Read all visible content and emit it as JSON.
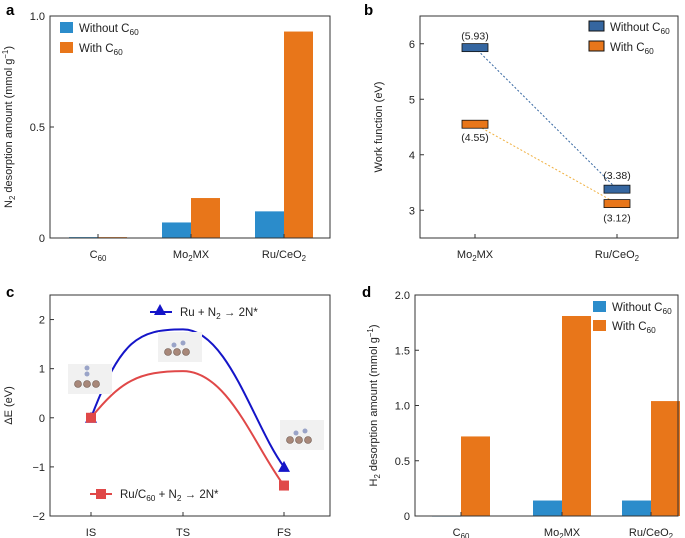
{
  "colors": {
    "blue_a": "#2b8ccb",
    "orange": "#e8761a",
    "blue_b": "#3566a0",
    "line_blue": "#1515c8",
    "line_red": "#e04848",
    "axis": "#333333"
  },
  "chart_data": [
    {
      "panel": "a",
      "type": "bar",
      "categories": [
        "C60",
        "Mo2MX",
        "Ru/CeO2"
      ],
      "series": [
        {
          "name": "Without C60",
          "values": [
            0.004,
            0.07,
            0.12
          ]
        },
        {
          "name": "With C60",
          "values": [
            0.004,
            0.18,
            0.93
          ]
        }
      ],
      "ylabel": "N2 desorption amount (mmol g−1)",
      "ylim": [
        0,
        1.0
      ],
      "yticks": [
        "0",
        "0.5",
        "1.0"
      ],
      "ytick_values": [
        0,
        0.5,
        1.0
      ],
      "legend": "top-left"
    },
    {
      "panel": "b",
      "type": "scatter",
      "categories": [
        "Mo2MX",
        "Ru/CeO2"
      ],
      "series": [
        {
          "name": "Without C60",
          "values": [
            5.93,
            3.38
          ],
          "labels": [
            "(5.93)",
            "(3.38)"
          ]
        },
        {
          "name": "With C60",
          "values": [
            4.55,
            3.12
          ],
          "labels": [
            "(4.55)",
            "(3.12)"
          ]
        }
      ],
      "ylabel": "Work function (eV)",
      "ylim": [
        2.5,
        6.5
      ],
      "yticks": [
        "3",
        "4",
        "5",
        "6"
      ],
      "ytick_values": [
        3,
        4,
        5,
        6
      ],
      "legend": "top-right"
    },
    {
      "panel": "c",
      "type": "line",
      "categories": [
        "IS",
        "TS",
        "FS"
      ],
      "series": [
        {
          "name": "Ru + N2 → 2N*",
          "values": [
            0,
            1.8,
            -1.0
          ]
        },
        {
          "name": "Ru/C60 + N2 → 2N*",
          "values": [
            0,
            0.95,
            -1.38
          ]
        }
      ],
      "ylabel": "ΔE (eV)",
      "ylim": [
        -2,
        2.5
      ],
      "yticks": [
        "2",
        "1",
        "0",
        "−1",
        "−2"
      ],
      "ytick_values": [
        2,
        1,
        0,
        -1,
        -2
      ]
    },
    {
      "panel": "d",
      "type": "bar",
      "categories": [
        "C60",
        "Mo2MX",
        "Ru/CeO2"
      ],
      "series": [
        {
          "name": "Without C60",
          "values": [
            0,
            0.14,
            0.14
          ]
        },
        {
          "name": "With C60",
          "values": [
            0.72,
            1.81,
            1.04
          ]
        }
      ],
      "ylabel": "H2 desorption amount (mmol g−1)",
      "ylim": [
        0,
        2.0
      ],
      "yticks": [
        "0",
        "0.5",
        "1.0",
        "1.5",
        "2.0"
      ],
      "ytick_values": [
        0,
        0.5,
        1.0,
        1.5,
        2.0
      ],
      "legend": "top-right"
    }
  ],
  "labels": {
    "panel_a": "a",
    "panel_b": "b",
    "panel_c": "c",
    "panel_d": "d",
    "without_c60": "Without C60",
    "with_c60": "With C60"
  }
}
